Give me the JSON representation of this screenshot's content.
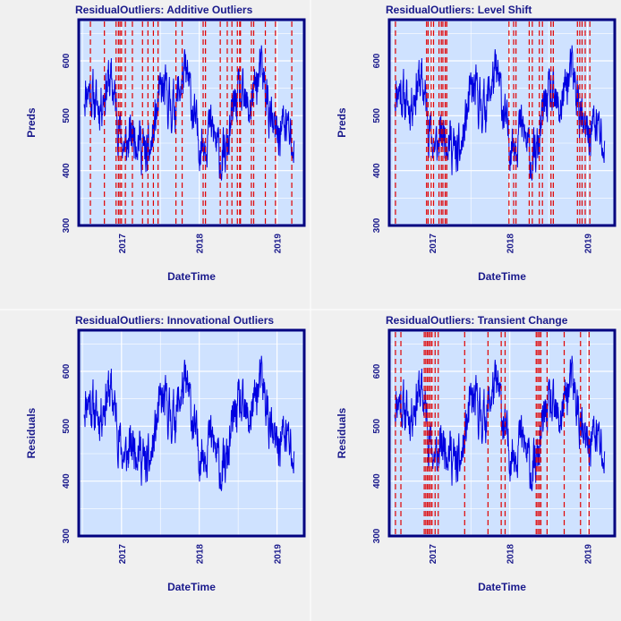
{
  "chart_data": [
    {
      "type": "line",
      "title": "ResidualOutliers: Additive Outliers",
      "xlabel": "DateTime",
      "ylabel": "Preds",
      "xlim": [
        2016.45,
        2019.35
      ],
      "ylim": [
        300,
        675
      ],
      "xticks": [
        2017,
        2018,
        2019
      ],
      "xtick_labels": [
        "2017",
        "2018",
        "2019"
      ],
      "yticks": [
        300,
        400,
        500,
        600
      ],
      "ytick_labels": [
        "300",
        "400",
        "500",
        "600"
      ],
      "line_color": "#0000e0",
      "outlier_color": "#e00000",
      "seed": 11,
      "outliers": [
        2016.6,
        2016.78,
        2016.93,
        2016.96,
        2016.98,
        2017.0,
        2017.05,
        2017.14,
        2017.27,
        2017.34,
        2017.41,
        2017.47,
        2017.7,
        2017.78,
        2018.05,
        2018.08,
        2018.27,
        2018.36,
        2018.42,
        2018.49,
        2018.52,
        2018.53,
        2018.67,
        2018.7,
        2018.85,
        2018.98,
        2019.19
      ]
    },
    {
      "type": "line",
      "title": "ResidualOutliers: Level Shift",
      "xlabel": "DateTime",
      "ylabel": "Preds",
      "xlim": [
        2016.45,
        2019.35
      ],
      "ylim": [
        300,
        675
      ],
      "xticks": [
        2017,
        2018,
        2019
      ],
      "xtick_labels": [
        "2017",
        "2018",
        "2019"
      ],
      "yticks": [
        300,
        400,
        500,
        600
      ],
      "ytick_labels": [
        "300",
        "400",
        "500",
        "600"
      ],
      "line_color": "#0000e0",
      "outlier_color": "#e00000",
      "seed": 11,
      "outliers": [
        2016.53,
        2016.93,
        2016.95,
        2016.99,
        2017.02,
        2017.09,
        2017.12,
        2017.14,
        2017.17,
        2017.19,
        2017.99,
        2018.05,
        2018.08,
        2018.25,
        2018.29,
        2018.38,
        2018.42,
        2018.53,
        2018.56,
        2018.87,
        2018.9,
        2018.93,
        2018.97,
        2019.03
      ]
    },
    {
      "type": "line",
      "title": "ResidualOutliers: Innovational Outliers",
      "xlabel": "DateTime",
      "ylabel": "Residuals",
      "xlim": [
        2016.45,
        2019.35
      ],
      "ylim": [
        300,
        675
      ],
      "xticks": [
        2017,
        2018,
        2019
      ],
      "xtick_labels": [
        "2017",
        "2018",
        "2019"
      ],
      "yticks": [
        300,
        400,
        500,
        600
      ],
      "ytick_labels": [
        "300",
        "400",
        "500",
        "600"
      ],
      "line_color": "#0000e0",
      "outlier_color": "#e00000",
      "seed": 11,
      "outliers": []
    },
    {
      "type": "line",
      "title": "ResidualOutliers: Transient Change",
      "xlabel": "DateTime",
      "ylabel": "Residuals",
      "xlim": [
        2016.45,
        2019.35
      ],
      "ylim": [
        300,
        675
      ],
      "xticks": [
        2017,
        2018,
        2019
      ],
      "xtick_labels": [
        "2017",
        "2018",
        "2019"
      ],
      "yticks": [
        300,
        400,
        500,
        600
      ],
      "ytick_labels": [
        "300",
        "400",
        "500",
        "600"
      ],
      "line_color": "#0000e0",
      "outlier_color": "#e00000",
      "seed": 11,
      "outliers": [
        2016.53,
        2016.6,
        2016.9,
        2016.92,
        2016.94,
        2016.96,
        2016.98,
        2017.0,
        2017.04,
        2017.08,
        2017.42,
        2017.72,
        2017.89,
        2017.94,
        2018.34,
        2018.36,
        2018.38,
        2018.4,
        2018.48,
        2018.7,
        2018.91,
        2019.02
      ]
    }
  ]
}
